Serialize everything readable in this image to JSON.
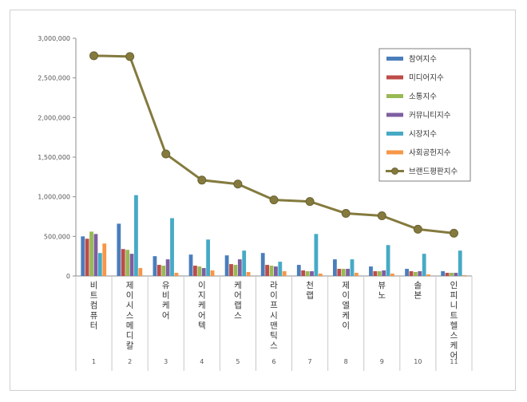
{
  "chart_data": {
    "type": "bar",
    "y_ticks": [
      "0",
      "500,000",
      "1,000,000",
      "1,500,000",
      "2,000,000",
      "2,500,000",
      "3,000,000"
    ],
    "ylim": [
      0,
      3000000
    ],
    "grid": false,
    "legend_position": "top-right",
    "numbers": [
      "1",
      "2",
      "3",
      "4",
      "5",
      "6",
      "7",
      "8",
      "9",
      "10",
      "11"
    ],
    "categories": [
      "비트컴퓨터",
      "제이시스메디칼",
      "유비케어",
      "이지케어텍",
      "케어랩스",
      "라이프시맨틱스",
      "천랩",
      "제이엘케이",
      "뷰노",
      "솔본",
      "인피니트헬스케어"
    ],
    "series": [
      {
        "name": "참여지수",
        "color": "#4a7ebb",
        "type": "bar",
        "values": [
          500000,
          660000,
          250000,
          270000,
          260000,
          290000,
          140000,
          210000,
          120000,
          90000,
          60000
        ]
      },
      {
        "name": "미디어지수",
        "color": "#be4b48",
        "type": "bar",
        "values": [
          470000,
          340000,
          140000,
          130000,
          150000,
          140000,
          70000,
          90000,
          60000,
          60000,
          40000
        ]
      },
      {
        "name": "소통지수",
        "color": "#98b954",
        "type": "bar",
        "values": [
          560000,
          330000,
          130000,
          120000,
          140000,
          130000,
          60000,
          90000,
          60000,
          50000,
          40000
        ]
      },
      {
        "name": "커뮤니티지수",
        "color": "#7d5fa0",
        "type": "bar",
        "values": [
          530000,
          280000,
          210000,
          100000,
          210000,
          120000,
          60000,
          90000,
          70000,
          60000,
          40000
        ]
      },
      {
        "name": "시장지수",
        "color": "#46aac5",
        "type": "bar",
        "values": [
          290000,
          1020000,
          730000,
          460000,
          320000,
          180000,
          530000,
          210000,
          390000,
          280000,
          320000
        ]
      },
      {
        "name": "사회공헌지수",
        "color": "#f79646",
        "type": "bar",
        "values": [
          410000,
          100000,
          40000,
          70000,
          50000,
          60000,
          30000,
          40000,
          30000,
          20000,
          10000
        ]
      },
      {
        "name": "브랜드평판지수",
        "color": "#847a3e",
        "type": "line",
        "values": [
          2780000,
          2770000,
          1540000,
          1210000,
          1160000,
          960000,
          940000,
          790000,
          760000,
          590000,
          540000
        ]
      }
    ]
  }
}
